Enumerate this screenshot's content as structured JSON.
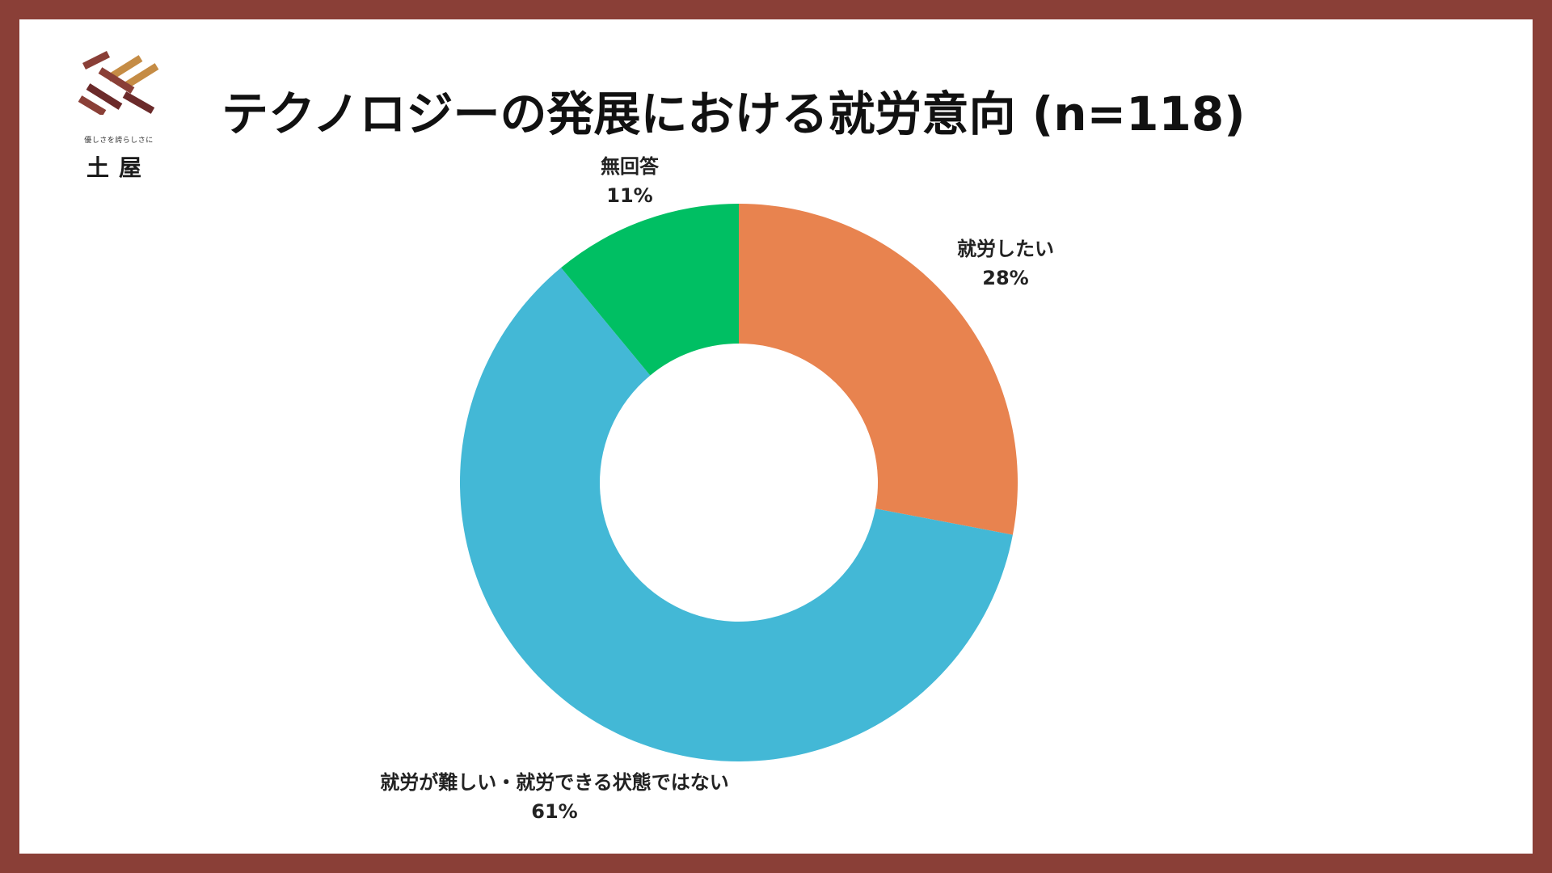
{
  "slide": {
    "title": "テクノロジーの発展における就労意向 (n=118)"
  },
  "logo": {
    "tagline": "優しさを誇らしさに",
    "name": "土屋",
    "colors": [
      "#8a3f37",
      "#c58c45",
      "#6b2a2a"
    ]
  },
  "colors": {
    "frame": "#8a3f37",
    "background": "#ffffff"
  },
  "chart_data": {
    "type": "pie",
    "donut": true,
    "title": "テクノロジーの発展における就労意向 (n=118)",
    "slices": [
      {
        "label": "就労したい",
        "value": 28,
        "value_label": "28%",
        "color": "#e8834f"
      },
      {
        "label": "就労が難しい・就労できる状態ではない",
        "value": 61,
        "value_label": "61%",
        "color": "#43b8d6"
      },
      {
        "label": "無回答",
        "value": 11,
        "value_label": "11%",
        "color": "#00bf63"
      }
    ],
    "start_angle_deg": 0,
    "direction": "clockwise",
    "legend": "none"
  }
}
